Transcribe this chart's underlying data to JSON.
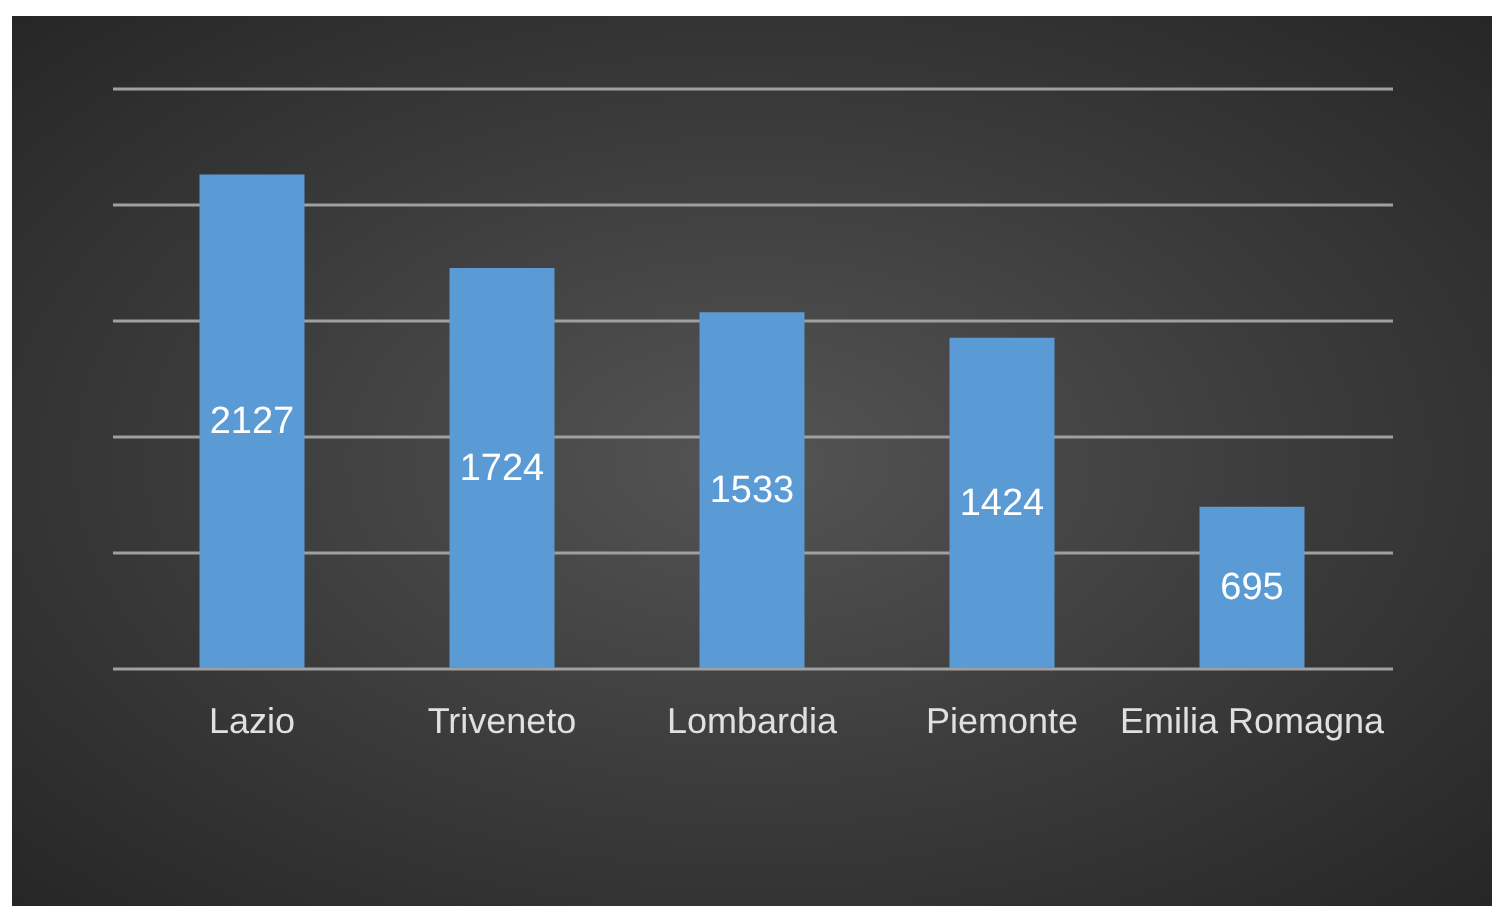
{
  "chart_data": {
    "type": "bar",
    "categories": [
      "Lazio",
      "Triveneto",
      "Lombardia",
      "Piemonte",
      "Emilia Romagna"
    ],
    "values": [
      2127,
      1724,
      1533,
      1424,
      695
    ],
    "color": "#5b9bd5",
    "ylim": [
      0,
      2500
    ],
    "yticks": [
      {
        "value": 0,
        "label": null
      },
      {
        "value": 500,
        "label": null
      },
      {
        "value": 1000,
        "label": null
      },
      {
        "value": 1500,
        "label": null
      },
      {
        "value": 2000,
        "label": null
      },
      {
        "value": 2500,
        "label": null
      }
    ],
    "tick_labels": "x",
    "grid": "y",
    "data_labels": true
  }
}
